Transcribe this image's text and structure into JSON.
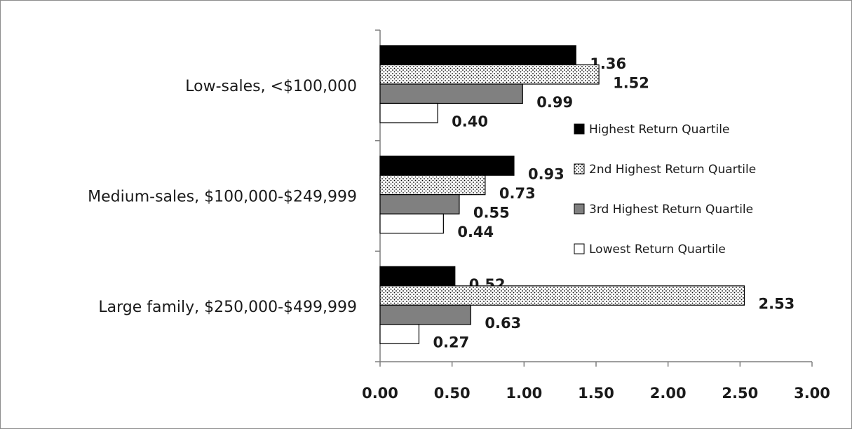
{
  "chart_data": {
    "type": "bar",
    "orientation": "horizontal",
    "categories": [
      "Low-sales, <$100,000",
      "Medium-sales, $100,000-$249,999",
      "Large family, $250,000-$499,999"
    ],
    "series": [
      {
        "name": "Highest Return Quartile",
        "values": [
          1.36,
          0.93,
          0.52
        ],
        "labels": [
          "1.36",
          "0.93",
          "0.52"
        ],
        "fill": "solid",
        "color": "#000000"
      },
      {
        "name": "2nd Highest Return Quartile",
        "values": [
          1.52,
          0.73,
          2.53
        ],
        "labels": [
          "1.52",
          "0.73",
          "2.53"
        ],
        "fill": "dotted",
        "color": "#ffffff"
      },
      {
        "name": "3rd Highest Return Quartile",
        "values": [
          0.99,
          0.55,
          0.63
        ],
        "labels": [
          "0.99",
          "0.55",
          "0.63"
        ],
        "fill": "solid",
        "color": "#808080"
      },
      {
        "name": "Lowest Return Quartile",
        "values": [
          0.4,
          0.44,
          0.27
        ],
        "labels": [
          "0.40",
          "0.44",
          "0.27"
        ],
        "fill": "solid",
        "color": "#ffffff"
      }
    ],
    "xlim": [
      0,
      3
    ],
    "xticks": [
      "0.00",
      "0.50",
      "1.00",
      "1.50",
      "2.00",
      "2.50",
      "3.00"
    ],
    "title": "",
    "xlabel": "",
    "ylabel": "",
    "grid": false,
    "legend": "right"
  }
}
